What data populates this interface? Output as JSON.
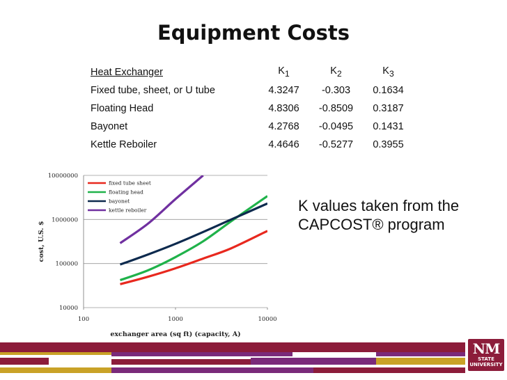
{
  "slide": {
    "title": "Equipment Costs",
    "note": "K values taken from the CAPCOST® program",
    "logo_line1": "NM",
    "logo_line2": "STATE UNIVERSITY"
  },
  "colors": {
    "maroon": "#8c1c3a",
    "gold": "#c9a227",
    "purple": "#7a2a7a",
    "red": "#e8281e",
    "green": "#1fb24a",
    "navy": "#0d2a4e",
    "violet": "#7030a0"
  },
  "k_table": {
    "header": {
      "name": "Heat Exchanger",
      "k1_base": "K",
      "k1_sub": "1",
      "k2_base": "K",
      "k2_sub": "2",
      "k3_base": "K",
      "k3_sub": "3"
    },
    "rows": [
      {
        "name": "Fixed tube, sheet, or U tube",
        "k1": "4.3247",
        "k2": "-0.303",
        "k3": "0.1634"
      },
      {
        "name": "Floating Head",
        "k1": "4.8306",
        "k2": "-0.8509",
        "k3": "0.3187"
      },
      {
        "name": "Bayonet",
        "k1": "4.2768",
        "k2": "-0.0495",
        "k3": "0.1431"
      },
      {
        "name": "Kettle Reboiler",
        "k1": "4.4646",
        "k2": "-0.5277",
        "k3": "0.3955"
      }
    ]
  },
  "chart_data": {
    "type": "line",
    "xscale": "log",
    "yscale": "log",
    "xlabel": "exchanger area (sq ft) (capacity, A)",
    "ylabel": "cost, U.S. $",
    "xlim": [
      100,
      10000
    ],
    "ylim": [
      10000,
      10000000
    ],
    "xticks": [
      "100",
      "1000",
      "10000"
    ],
    "yticks": [
      "10000000",
      "1000000",
      "100000",
      "10000"
    ],
    "grid": "horizontal",
    "legend": "top-left",
    "x": [
      250,
      500,
      1000,
      2000,
      4000,
      10000
    ],
    "series": [
      {
        "name": "fixed tube sheet",
        "color": "#e8281e",
        "values": [
          34000,
          50000,
          78000,
          130000,
          220000,
          550000
        ]
      },
      {
        "name": "floating head",
        "color": "#1fb24a",
        "values": [
          42000,
          70000,
          140000,
          320000,
          900000,
          3400000
        ]
      },
      {
        "name": "bayonet",
        "color": "#0d2a4e",
        "values": [
          95000,
          160000,
          280000,
          520000,
          990000,
          2300000
        ]
      },
      {
        "name": "kettle reboiler",
        "color": "#7030a0",
        "values": [
          290000,
          800000,
          2900000,
          10000000,
          null,
          null
        ]
      }
    ]
  }
}
